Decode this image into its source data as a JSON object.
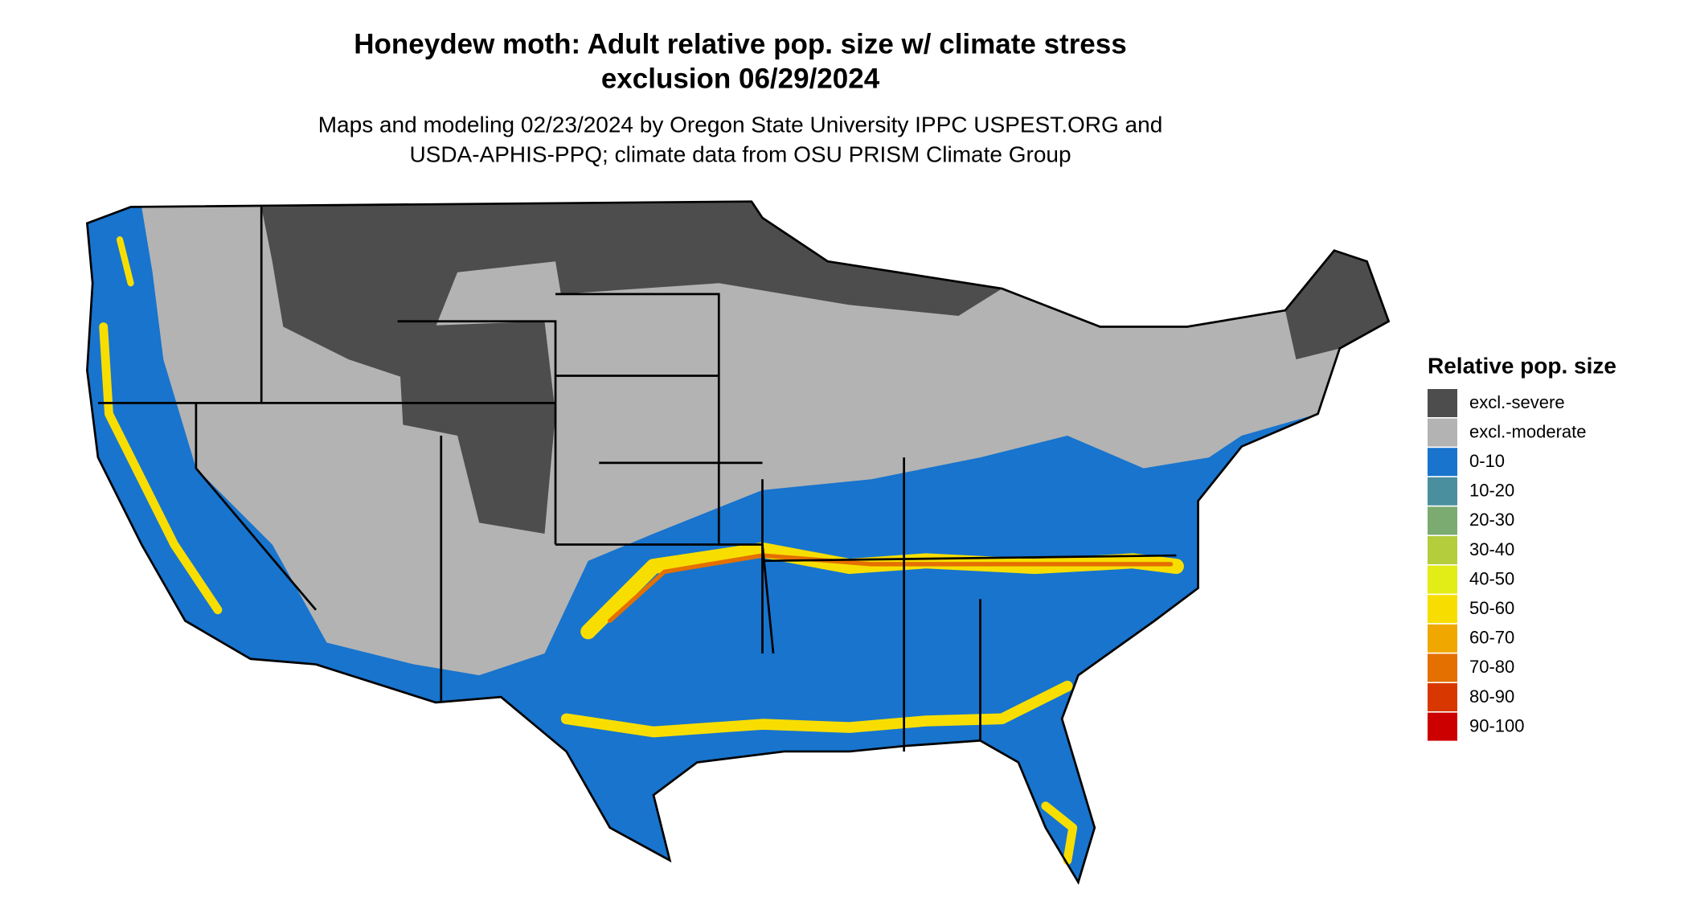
{
  "title": [
    "Honeydew moth: Adult relative pop. size w/ climate stress",
    "exclusion 06/29/2024"
  ],
  "subtitle": [
    "Maps and modeling 02/23/2024 by Oregon State University IPPC USPEST.ORG and",
    "USDA-APHIS-PPQ; climate data from OSU PRISM Climate Group"
  ],
  "legend": {
    "title": "Relative pop. size",
    "items": [
      {
        "label": "excl.-severe",
        "color": "#4d4d4d"
      },
      {
        "label": "excl.-moderate",
        "color": "#b3b3b3"
      },
      {
        "label": "0-10",
        "color": "#1874cd"
      },
      {
        "label": "10-20",
        "color": "#4a8f9e"
      },
      {
        "label": "20-30",
        "color": "#7bab70"
      },
      {
        "label": "30-40",
        "color": "#b3cd3c"
      },
      {
        "label": "40-50",
        "color": "#e2ec16"
      },
      {
        "label": "50-60",
        "color": "#f8de00"
      },
      {
        "label": "60-70",
        "color": "#f0a800"
      },
      {
        "label": "70-80",
        "color": "#e47000"
      },
      {
        "label": "80-90",
        "color": "#d83800"
      },
      {
        "label": "90-100",
        "color": "#cd0000"
      }
    ]
  }
}
